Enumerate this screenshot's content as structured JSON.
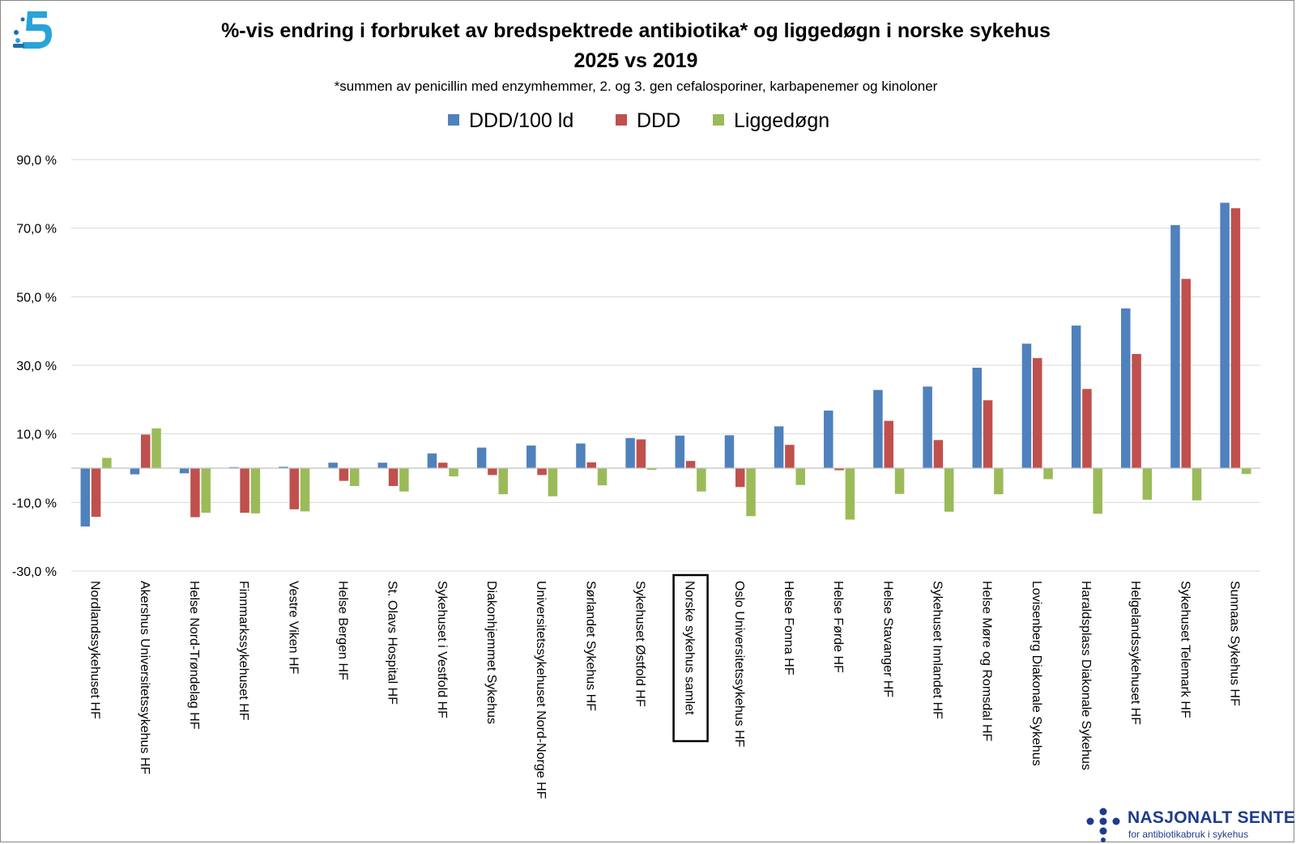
{
  "chart_data": {
    "type": "bar",
    "title": "%-vis endring i forbruket av bredspektrede antibiotika* og liggedøgn i norske sykehus",
    "title_line2": "2025 vs 2019",
    "subtitle": "*summen av penicillin med enzymhemmer, 2. og 3. gen cefalosporiner, karbapenemer og kinoloner",
    "xlabel": "",
    "ylabel": "",
    "ylim": [
      -30,
      90
    ],
    "yticks": [
      -30,
      -10,
      10,
      30,
      50,
      70,
      90
    ],
    "ytick_labels": [
      "-30,0 %",
      "-10,0 %",
      "10,0 %",
      "30,0 %",
      "50,0 %",
      "70,0 %",
      "90,0 %"
    ],
    "grid": true,
    "legend_position": "top",
    "highlighted_category": "Norske sykehus samlet",
    "categories": [
      "Nordlandssykehuset HF",
      "Akershus Universitetssykehus HF",
      "Helse Nord-Trøndelag HF",
      "Finnmarkssykehuset HF",
      "Vestre Viken HF",
      "Helse Bergen HF",
      "St. Olavs Hospital HF",
      "Sykehuset i Vestfold HF",
      "Diakonhjemmet Sykehus",
      "Universitetssykehuset Nord-Norge HF",
      "Sørlandet Sykehus HF",
      "Sykehuset Østfold HF",
      "Norske sykehus samlet",
      "Oslo Universitetssykehus HF",
      "Helse Fonna HF",
      "Helse Førde HF",
      "Helse Stavanger HF",
      "Sykehuset Innlandet HF",
      "Helse Møre og Romsdal HF",
      "Lovisenberg Diakonale Sykehus",
      "Haraldsplass Diakonale Sykehus",
      "Helgelandssykehuset HF",
      "Sykehuset Telemark HF",
      "Sunnaas Sykehus HF"
    ],
    "series": [
      {
        "name": "DDD/100 ld",
        "color": "#4f81bd",
        "values": [
          -17,
          -1.8,
          -1.5,
          0.3,
          0.4,
          1.6,
          1.6,
          4.3,
          6.0,
          6.6,
          7.2,
          8.8,
          9.5,
          9.6,
          12.2,
          16.8,
          22.8,
          23.8,
          29.3,
          36.3,
          41.6,
          46.6,
          70.9,
          77.4
        ]
      },
      {
        "name": "DDD",
        "color": "#c0504d",
        "values": [
          -14.2,
          9.8,
          -14.3,
          -13.0,
          -12.0,
          -3.7,
          -5.2,
          1.6,
          -2.0,
          -2.0,
          1.7,
          8.4,
          2.1,
          -5.5,
          6.8,
          -0.6,
          13.8,
          8.2,
          19.8,
          32.1,
          23.1,
          33.3,
          55.2,
          75.8
        ]
      },
      {
        "name": "Liggedøgn",
        "color": "#9bbb59",
        "values": [
          3.0,
          11.6,
          -13.0,
          -13.2,
          -12.6,
          -5.2,
          -6.8,
          -2.4,
          -7.6,
          -8.2,
          -5.0,
          -0.5,
          -6.8,
          -14.0,
          -4.9,
          -15.0,
          -7.5,
          -12.7,
          -7.6,
          -3.2,
          -13.3,
          -9.2,
          -9.4,
          -1.7
        ]
      }
    ]
  },
  "logos": {
    "left": {
      "icon": "antibiotic-data-logo-icon"
    },
    "right": {
      "icon": "nsas-dots-logo-icon",
      "name": "NASJONALT SENTER",
      "subtitle": "for antibiotikabruk i sykehus"
    }
  }
}
